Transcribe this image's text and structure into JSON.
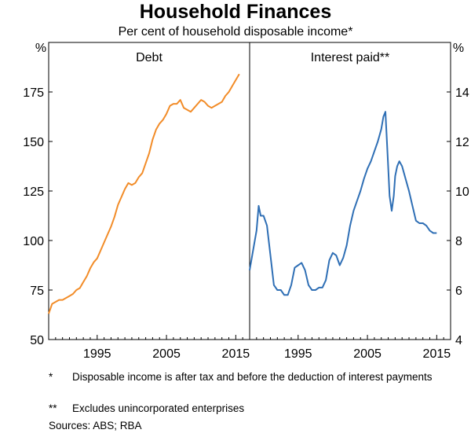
{
  "title": "Household Finances",
  "subtitle": "Per cent of household disposable income*",
  "notes": [
    {
      "mark": "*",
      "text": "Disposable income is after tax and before the deduction of interest payments"
    },
    {
      "mark": "**",
      "text": "Excludes unincorporated enterprises"
    }
  ],
  "sources": "Sources:   ABS; RBA",
  "colors": {
    "debt": "#f28c28",
    "interest": "#2f6fb5"
  },
  "chart_data": [
    {
      "type": "line",
      "panel_title": "Debt",
      "unit": "%",
      "axis_side": "left",
      "xlim": [
        1988,
        2017
      ],
      "ylim": [
        50,
        200
      ],
      "xticks": [
        1995,
        2005,
        2015
      ],
      "yticks": [
        50,
        75,
        100,
        125,
        150,
        175
      ],
      "series": [
        {
          "color": "#f28c28",
          "x": [
            1988.0,
            1988.5,
            1989.0,
            1989.5,
            1990.0,
            1990.5,
            1991.0,
            1991.5,
            1992.0,
            1992.5,
            1993.0,
            1993.5,
            1994.0,
            1994.5,
            1995.0,
            1995.5,
            1996.0,
            1996.5,
            1997.0,
            1997.5,
            1998.0,
            1998.5,
            1999.0,
            1999.5,
            2000.0,
            2000.5,
            2001.0,
            2001.5,
            2002.0,
            2002.5,
            2003.0,
            2003.5,
            2004.0,
            2004.5,
            2005.0,
            2005.5,
            2006.0,
            2006.5,
            2007.0,
            2007.5,
            2008.0,
            2008.5,
            2009.0,
            2009.5,
            2010.0,
            2010.5,
            2011.0,
            2011.5,
            2012.0,
            2012.5,
            2013.0,
            2013.5,
            2014.0,
            2014.5,
            2015.0,
            2015.5
          ],
          "y": [
            63,
            68,
            69,
            70,
            70,
            71,
            72,
            73,
            75,
            76,
            79,
            82,
            86,
            89,
            91,
            95,
            99,
            103,
            107,
            112,
            118,
            122,
            126,
            129,
            128,
            129,
            132,
            134,
            139,
            144,
            151,
            156,
            159,
            161,
            164,
            168,
            169,
            169,
            171,
            167,
            166,
            165,
            167,
            169,
            171,
            170,
            168,
            167,
            168,
            169,
            170,
            173,
            175,
            178,
            181,
            184
          ]
        }
      ]
    },
    {
      "type": "line",
      "panel_title": "Interest paid**",
      "unit": "%",
      "axis_side": "right",
      "xlim": [
        1988,
        2017
      ],
      "ylim": [
        4,
        16
      ],
      "xticks": [
        1995,
        2005,
        2015
      ],
      "yticks": [
        4,
        6,
        8,
        10,
        12,
        14
      ],
      "series": [
        {
          "color": "#2f6fb5",
          "x": [
            1988.0,
            1988.5,
            1989.0,
            1989.3,
            1989.6,
            1990.0,
            1990.5,
            1991.0,
            1991.5,
            1992.0,
            1992.5,
            1993.0,
            1993.5,
            1994.0,
            1994.5,
            1995.0,
            1995.5,
            1996.0,
            1996.5,
            1997.0,
            1997.5,
            1998.0,
            1998.5,
            1999.0,
            1999.5,
            2000.0,
            2000.5,
            2001.0,
            2001.5,
            2002.0,
            2002.5,
            2003.0,
            2003.5,
            2004.0,
            2004.5,
            2005.0,
            2005.5,
            2006.0,
            2006.5,
            2007.0,
            2007.3,
            2007.6,
            2007.9,
            2008.2,
            2008.5,
            2008.8,
            2009.0,
            2009.3,
            2009.6,
            2010.0,
            2010.5,
            2011.0,
            2011.5,
            2012.0,
            2012.5,
            2013.0,
            2013.5,
            2014.0,
            2014.5,
            2015.0
          ],
          "y": [
            6.8,
            7.6,
            8.4,
            9.4,
            9.0,
            9.0,
            8.6,
            7.4,
            6.2,
            6.0,
            6.0,
            5.8,
            5.8,
            6.2,
            6.9,
            7.0,
            7.1,
            6.8,
            6.2,
            6.0,
            6.0,
            6.1,
            6.1,
            6.4,
            7.2,
            7.5,
            7.4,
            7.0,
            7.3,
            7.8,
            8.6,
            9.2,
            9.6,
            10.0,
            10.5,
            10.9,
            11.2,
            11.6,
            12.0,
            12.5,
            13.0,
            13.2,
            11.5,
            9.8,
            9.2,
            9.8,
            10.6,
            11.0,
            11.2,
            11.0,
            10.5,
            10.0,
            9.4,
            8.8,
            8.7,
            8.7,
            8.6,
            8.4,
            8.3,
            8.3
          ]
        }
      ]
    }
  ]
}
